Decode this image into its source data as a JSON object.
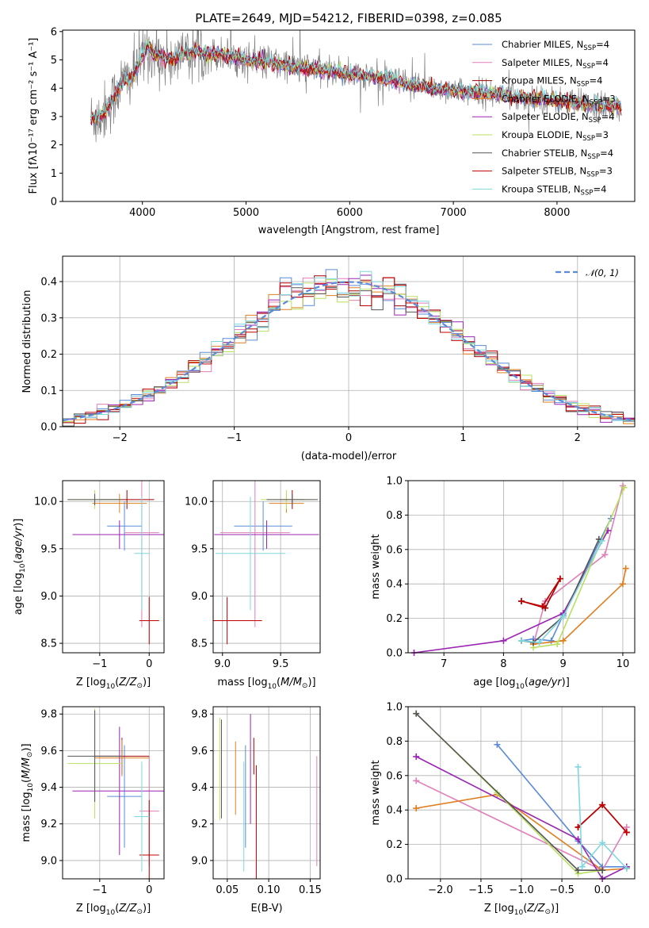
{
  "figure": {
    "title": "PLATE=2649, MJD=54212, FIBERID=0398, z=0.085"
  },
  "colors": {
    "Chabrier MILES": "#5b8bd8",
    "Salpeter MILES": "#e07fb8",
    "Kroupa MILES": "#a00000",
    "Chabrier ELODIE": "#e07f20",
    "Salpeter ELODIE": "#9a25b2",
    "Kroupa ELODIE": "#b8e060",
    "Chabrier STELIB": "#555555",
    "Salpeter STELIB": "#c00000",
    "Kroupa STELIB": "#7fd8e0",
    "data": "#808080",
    "normal_curve": "#5b8bd8"
  },
  "chart_data": [
    {
      "id": "spectrum",
      "type": "line",
      "title": "PLATE=2649, MJD=54212, FIBERID=0398, z=0.085",
      "xlabel": "wavelength [Angstrom, rest frame]",
      "ylabel": "Flux [fλ10⁻¹⁷ erg cm⁻² s⁻¹ A⁻¹]",
      "xlim": [
        3230,
        8750
      ],
      "ylim": [
        0,
        6.05
      ],
      "xticks": [
        4000,
        5000,
        6000,
        7000,
        8000
      ],
      "yticks": [
        0,
        1,
        2,
        3,
        4,
        5,
        6
      ],
      "grid": false,
      "legend_position": "top-right",
      "legend": [
        {
          "label": "Chabrier MILES, N_SSP=4",
          "text": "Chabrier MILES, N",
          "sub": "SSP",
          "suffix": "=4"
        },
        {
          "label": "Salpeter MILES, N_SSP=4",
          "text": "Salpeter MILES, N",
          "sub": "SSP",
          "suffix": "=4"
        },
        {
          "label": "Kroupa MILES, N_SSP=4",
          "text": "Kroupa MILES, N",
          "sub": "SSP",
          "suffix": "=4"
        },
        {
          "label": "Chabrier ELODIE, N_SSP=3",
          "text": "Chabrier ELODIE, N",
          "sub": "SSP",
          "suffix": "=3"
        },
        {
          "label": "Salpeter ELODIE, N_SSP=4",
          "text": "Salpeter ELODIE, N",
          "sub": "SSP",
          "suffix": "=4"
        },
        {
          "label": "Kroupa ELODIE, N_SSP=3",
          "text": "Kroupa ELODIE, N",
          "sub": "SSP",
          "suffix": "=3"
        },
        {
          "label": "Chabrier STELIB, N_SSP=4",
          "text": "Chabrier STELIB, N",
          "sub": "SSP",
          "suffix": "=4"
        },
        {
          "label": "Salpeter STELIB, N_SSP=3",
          "text": "Salpeter STELIB, N",
          "sub": "SSP",
          "suffix": "=3"
        },
        {
          "label": "Kroupa STELIB, N_SSP=4",
          "text": "Kroupa STELIB, N",
          "sub": "SSP",
          "suffix": "=4"
        }
      ],
      "model_continuum": {
        "x": [
          3500,
          3600,
          3700,
          3800,
          3900,
          4000,
          4050,
          4100,
          4200,
          4300,
          4400,
          4500,
          4600,
          4700,
          4800,
          4900,
          5000,
          5200,
          5400,
          5600,
          5800,
          6000,
          6200,
          6400,
          6600,
          6800,
          7000,
          7200,
          7400,
          7600,
          7800,
          8000,
          8200,
          8400,
          8600
        ],
        "y": [
          2.9,
          3.0,
          3.5,
          4.2,
          4.4,
          5.1,
          5.5,
          5.2,
          5.1,
          5.0,
          5.2,
          5.3,
          5.25,
          5.2,
          5.15,
          5.1,
          5.0,
          4.9,
          4.8,
          4.7,
          4.6,
          4.5,
          4.4,
          4.3,
          4.1,
          4.0,
          3.95,
          3.85,
          3.8,
          3.7,
          3.65,
          3.55,
          3.45,
          3.4,
          3.35
        ]
      }
    },
    {
      "id": "residuals",
      "type": "bar",
      "xlabel": "(data-model)/error",
      "ylabel": "Normed distribution",
      "xlim": [
        -2.5,
        2.5
      ],
      "ylim": [
        0,
        0.47
      ],
      "xticks": [
        -2,
        -1,
        0,
        1,
        2
      ],
      "yticks": [
        0.0,
        0.1,
        0.2,
        0.3,
        0.4
      ],
      "grid": true,
      "legend_position": "top-right",
      "legend": [
        {
          "label": "𝒩(0, 1)"
        }
      ],
      "bin_width": 0.1
    },
    {
      "id": "age_vs_Z",
      "type": "scatter",
      "xlabel": "Z [log10(Z/Z⊙)]",
      "ylabel": "age [log10(age/yr)]",
      "xlim": [
        -1.75,
        0.3
      ],
      "ylim": [
        8.4,
        10.22
      ],
      "xticks": [
        -1,
        0
      ],
      "yticks": [
        8.5,
        9.0,
        9.5,
        10.0
      ],
      "grid": true,
      "points": [
        {
          "series": "Chabrier MILES",
          "x": -0.5,
          "y": 9.74,
          "xerr": 0.35,
          "yerr": 0.26
        },
        {
          "series": "Salpeter MILES",
          "x": -0.15,
          "y": 9.67,
          "xerr": 0.35,
          "yerr": 1.0
        },
        {
          "series": "Kroupa MILES",
          "x": -0.45,
          "y": 10.02,
          "xerr": 0.55,
          "yerr": 0.1
        },
        {
          "series": "Chabrier ELODIE",
          "x": -0.6,
          "y": 9.98,
          "xerr": 0.55,
          "yerr": 0.1
        },
        {
          "series": "Salpeter ELODIE",
          "x": -0.6,
          "y": 9.65,
          "xerr": 0.95,
          "yerr": 0.15
        },
        {
          "series": "Kroupa ELODIE",
          "x": -1.1,
          "y": 10.02,
          "xerr": 0.55,
          "yerr": 0.1
        },
        {
          "series": "Chabrier STELIB",
          "x": -1.1,
          "y": 10.02,
          "xerr": 0.55,
          "yerr": 0.06
        },
        {
          "series": "Salpeter STELIB",
          "x": 0.0,
          "y": 8.74,
          "xerr": 0.2,
          "yerr": 0.25
        },
        {
          "series": "Kroupa STELIB",
          "x": -0.15,
          "y": 9.45,
          "xerr": 0.15,
          "yerr": 0.6
        }
      ]
    },
    {
      "id": "age_vs_mass",
      "type": "scatter",
      "xlabel": "mass [log10(M/M⊙)]",
      "ylabel": "",
      "xlim": [
        8.92,
        9.84
      ],
      "ylim": [
        8.4,
        10.22
      ],
      "xticks": [
        9.0,
        9.5
      ],
      "yticks": [
        8.5,
        9.0,
        9.5,
        10.0
      ],
      "grid": true,
      "points": [
        {
          "series": "Chabrier MILES",
          "x": 9.35,
          "y": 9.74,
          "xerr": 0.25,
          "yerr": 0.26
        },
        {
          "series": "Salpeter MILES",
          "x": 9.28,
          "y": 9.67,
          "xerr": 0.3,
          "yerr": 1.0
        },
        {
          "series": "Kroupa MILES",
          "x": 9.6,
          "y": 10.02,
          "xerr": 0.1,
          "yerr": 0.1
        },
        {
          "series": "Chabrier ELODIE",
          "x": 9.55,
          "y": 9.98,
          "xerr": 0.15,
          "yerr": 0.1
        },
        {
          "series": "Salpeter ELODIE",
          "x": 9.38,
          "y": 9.65,
          "xerr": 0.45,
          "yerr": 0.15
        },
        {
          "series": "Kroupa ELODIE",
          "x": 9.55,
          "y": 10.02,
          "xerr": 0.22,
          "yerr": 0.1
        },
        {
          "series": "Chabrier STELIB",
          "x": 9.6,
          "y": 10.02,
          "xerr": 0.22,
          "yerr": 0.06
        },
        {
          "series": "Salpeter STELIB",
          "x": 9.04,
          "y": 8.74,
          "xerr": 0.3,
          "yerr": 0.25
        },
        {
          "series": "Kroupa STELIB",
          "x": 9.24,
          "y": 9.45,
          "xerr": 0.3,
          "yerr": 0.6
        }
      ]
    },
    {
      "id": "mass_weight_vs_age",
      "type": "line",
      "xlabel": "age [log10(age/yr)]",
      "ylabel": "mass weight",
      "xlim": [
        6.4,
        10.2
      ],
      "ylim": [
        0,
        1
      ],
      "xticks": [
        7,
        8,
        9,
        10
      ],
      "yticks": [
        0.0,
        0.2,
        0.4,
        0.6,
        0.8,
        1.0
      ],
      "grid": true,
      "series": [
        {
          "name": "Chabrier MILES",
          "x": [
            8.3,
            8.5,
            8.8,
            9.0,
            9.8
          ],
          "y": [
            0.07,
            0.08,
            0.07,
            0.22,
            0.78
          ]
        },
        {
          "name": "Salpeter MILES",
          "x": [
            8.5,
            8.7,
            9.7,
            10.0
          ],
          "y": [
            0.05,
            0.3,
            0.57,
            0.97
          ]
        },
        {
          "name": "Kroupa MILES",
          "x": [
            8.3,
            8.7,
            8.95
          ],
          "y": [
            0.3,
            0.26,
            0.43
          ]
        },
        {
          "name": "Chabrier ELODIE",
          "x": [
            8.5,
            9.0,
            10.0,
            10.05
          ],
          "y": [
            0.05,
            0.07,
            0.4,
            0.49
          ]
        },
        {
          "name": "Salpeter ELODIE",
          "x": [
            6.5,
            8.0,
            9.0,
            9.75
          ],
          "y": [
            0.0,
            0.07,
            0.23,
            0.71
          ]
        },
        {
          "name": "Kroupa ELODIE",
          "x": [
            8.5,
            8.9,
            10.02
          ],
          "y": [
            0.03,
            0.05,
            0.96
          ]
        },
        {
          "name": "Chabrier STELIB",
          "x": [
            8.3,
            8.5,
            9.0,
            9.6
          ],
          "y": [
            0.07,
            0.06,
            0.21,
            0.66
          ]
        },
        {
          "name": "Salpeter STELIB",
          "x": [
            8.3,
            8.65,
            8.95
          ],
          "y": [
            0.3,
            0.27,
            0.43
          ]
        },
        {
          "name": "Kroupa STELIB",
          "x": [
            8.3,
            8.6,
            9.0,
            9.65
          ],
          "y": [
            0.07,
            0.06,
            0.21,
            0.65
          ]
        }
      ]
    },
    {
      "id": "mass_vs_Z",
      "type": "scatter",
      "xlabel": "Z [log10(Z/Z⊙)]",
      "ylabel": "mass [log10(M/M⊙)]",
      "xlim": [
        -1.75,
        0.3
      ],
      "ylim": [
        8.9,
        9.84
      ],
      "xticks": [
        -1,
        0
      ],
      "yticks": [
        9.0,
        9.2,
        9.4,
        9.6,
        9.8
      ],
      "grid": true,
      "points": [
        {
          "series": "Chabrier MILES",
          "x": -0.5,
          "y": 9.35,
          "xerr": 0.35,
          "yerr": 0.28
        },
        {
          "series": "Salpeter MILES",
          "x": 0.0,
          "y": 9.27,
          "xerr": 0.2,
          "yerr": 0.3
        },
        {
          "series": "Kroupa MILES",
          "x": -0.55,
          "y": 9.57,
          "xerr": 0.55,
          "yerr": 0.1
        },
        {
          "series": "Chabrier ELODIE",
          "x": -0.55,
          "y": 9.56,
          "xerr": 0.55,
          "yerr": 0.1
        },
        {
          "series": "Salpeter ELODIE",
          "x": -0.6,
          "y": 9.38,
          "xerr": 0.95,
          "yerr": 0.35
        },
        {
          "series": "Kroupa ELODIE",
          "x": -1.1,
          "y": 9.53,
          "xerr": 0.55,
          "yerr": 0.3
        },
        {
          "series": "Chabrier STELIB",
          "x": -1.1,
          "y": 9.57,
          "xerr": 0.55,
          "yerr": 0.25
        },
        {
          "series": "Salpeter STELIB",
          "x": 0.0,
          "y": 9.03,
          "xerr": 0.2,
          "yerr": 0.3
        },
        {
          "series": "Kroupa STELIB",
          "x": -0.15,
          "y": 9.24,
          "xerr": 0.15,
          "yerr": 0.3
        }
      ]
    },
    {
      "id": "mass_vs_ebv",
      "type": "scatter",
      "xlabel": "E(B-V)",
      "ylabel": "",
      "xlim": [
        0.033,
        0.162
      ],
      "ylim": [
        8.9,
        9.84
      ],
      "xticks": [
        0.05,
        0.1,
        0.15
      ],
      "yticks": [
        9.0,
        9.2,
        9.4,
        9.6,
        9.8
      ],
      "grid": true,
      "points": [
        {
          "series": "Chabrier MILES",
          "x": 0.072,
          "y": 9.35,
          "xerr": 0,
          "yerr": 0.28
        },
        {
          "series": "Salpeter MILES",
          "x": 0.158,
          "y": 9.27,
          "xerr": 0,
          "yerr": 0.3
        },
        {
          "series": "Kroupa MILES",
          "x": 0.082,
          "y": 9.57,
          "xerr": 0,
          "yerr": 0.1
        },
        {
          "series": "Chabrier ELODIE",
          "x": 0.06,
          "y": 9.45,
          "xerr": 0,
          "yerr": 0.2
        },
        {
          "series": "Salpeter ELODIE",
          "x": 0.078,
          "y": 9.5,
          "xerr": 0,
          "yerr": 0.3
        },
        {
          "series": "Kroupa ELODIE",
          "x": 0.041,
          "y": 9.5,
          "xerr": 0,
          "yerr": 0.28
        },
        {
          "series": "Chabrier STELIB",
          "x": 0.043,
          "y": 9.5,
          "xerr": 0,
          "yerr": 0.27
        },
        {
          "series": "Salpeter STELIB",
          "x": 0.085,
          "y": 9.2,
          "xerr": 0,
          "yerr": 0.32
        },
        {
          "series": "Kroupa STELIB",
          "x": 0.07,
          "y": 9.24,
          "xerr": 0,
          "yerr": 0.3
        }
      ]
    },
    {
      "id": "mass_weight_vs_Z",
      "type": "line",
      "xlabel": "Z [log10(Z/Z⊙)]",
      "ylabel": "mass weight",
      "xlim": [
        -2.4,
        0.4
      ],
      "ylim": [
        0,
        1
      ],
      "xticks": [
        -2.0,
        -1.5,
        -1.0,
        -0.5,
        0.0
      ],
      "yticks": [
        0.0,
        0.2,
        0.4,
        0.6,
        0.8,
        1.0
      ],
      "grid": true,
      "series": [
        {
          "name": "Chabrier MILES",
          "x": [
            -1.3,
            -0.3,
            0.0,
            0.3
          ],
          "y": [
            0.78,
            0.22,
            0.07,
            0.07
          ]
        },
        {
          "name": "Salpeter MILES",
          "x": [
            -2.3,
            0.0,
            0.3
          ],
          "y": [
            0.57,
            0.05,
            0.3
          ]
        },
        {
          "name": "Kroupa MILES",
          "x": [
            -0.3,
            0.0,
            0.3
          ],
          "y": [
            0.3,
            0.43,
            0.27
          ]
        },
        {
          "name": "Chabrier ELODIE",
          "x": [
            -2.3,
            -1.3,
            0.0,
            0.3
          ],
          "y": [
            0.41,
            0.49,
            0.05,
            0.06
          ]
        },
        {
          "name": "Salpeter ELODIE",
          "x": [
            -2.3,
            -0.3,
            0.0,
            0.3
          ],
          "y": [
            0.71,
            0.23,
            0.0,
            0.07
          ]
        },
        {
          "name": "Kroupa ELODIE",
          "x": [
            -2.3,
            -1.3,
            -0.3,
            0.0
          ],
          "y": [
            0.96,
            0.5,
            0.03,
            0.05
          ]
        },
        {
          "name": "Chabrier STELIB",
          "x": [
            -2.3,
            -0.3,
            0.0
          ],
          "y": [
            0.96,
            0.05,
            0.05
          ]
        },
        {
          "name": "Salpeter STELIB",
          "x": [
            -0.3,
            0.0,
            0.3
          ],
          "y": [
            0.3,
            0.43,
            0.27
          ]
        },
        {
          "name": "Kroupa STELIB",
          "x": [
            -0.3,
            -0.25,
            0.0,
            0.3
          ],
          "y": [
            0.65,
            0.07,
            0.21,
            0.06
          ]
        }
      ]
    }
  ]
}
